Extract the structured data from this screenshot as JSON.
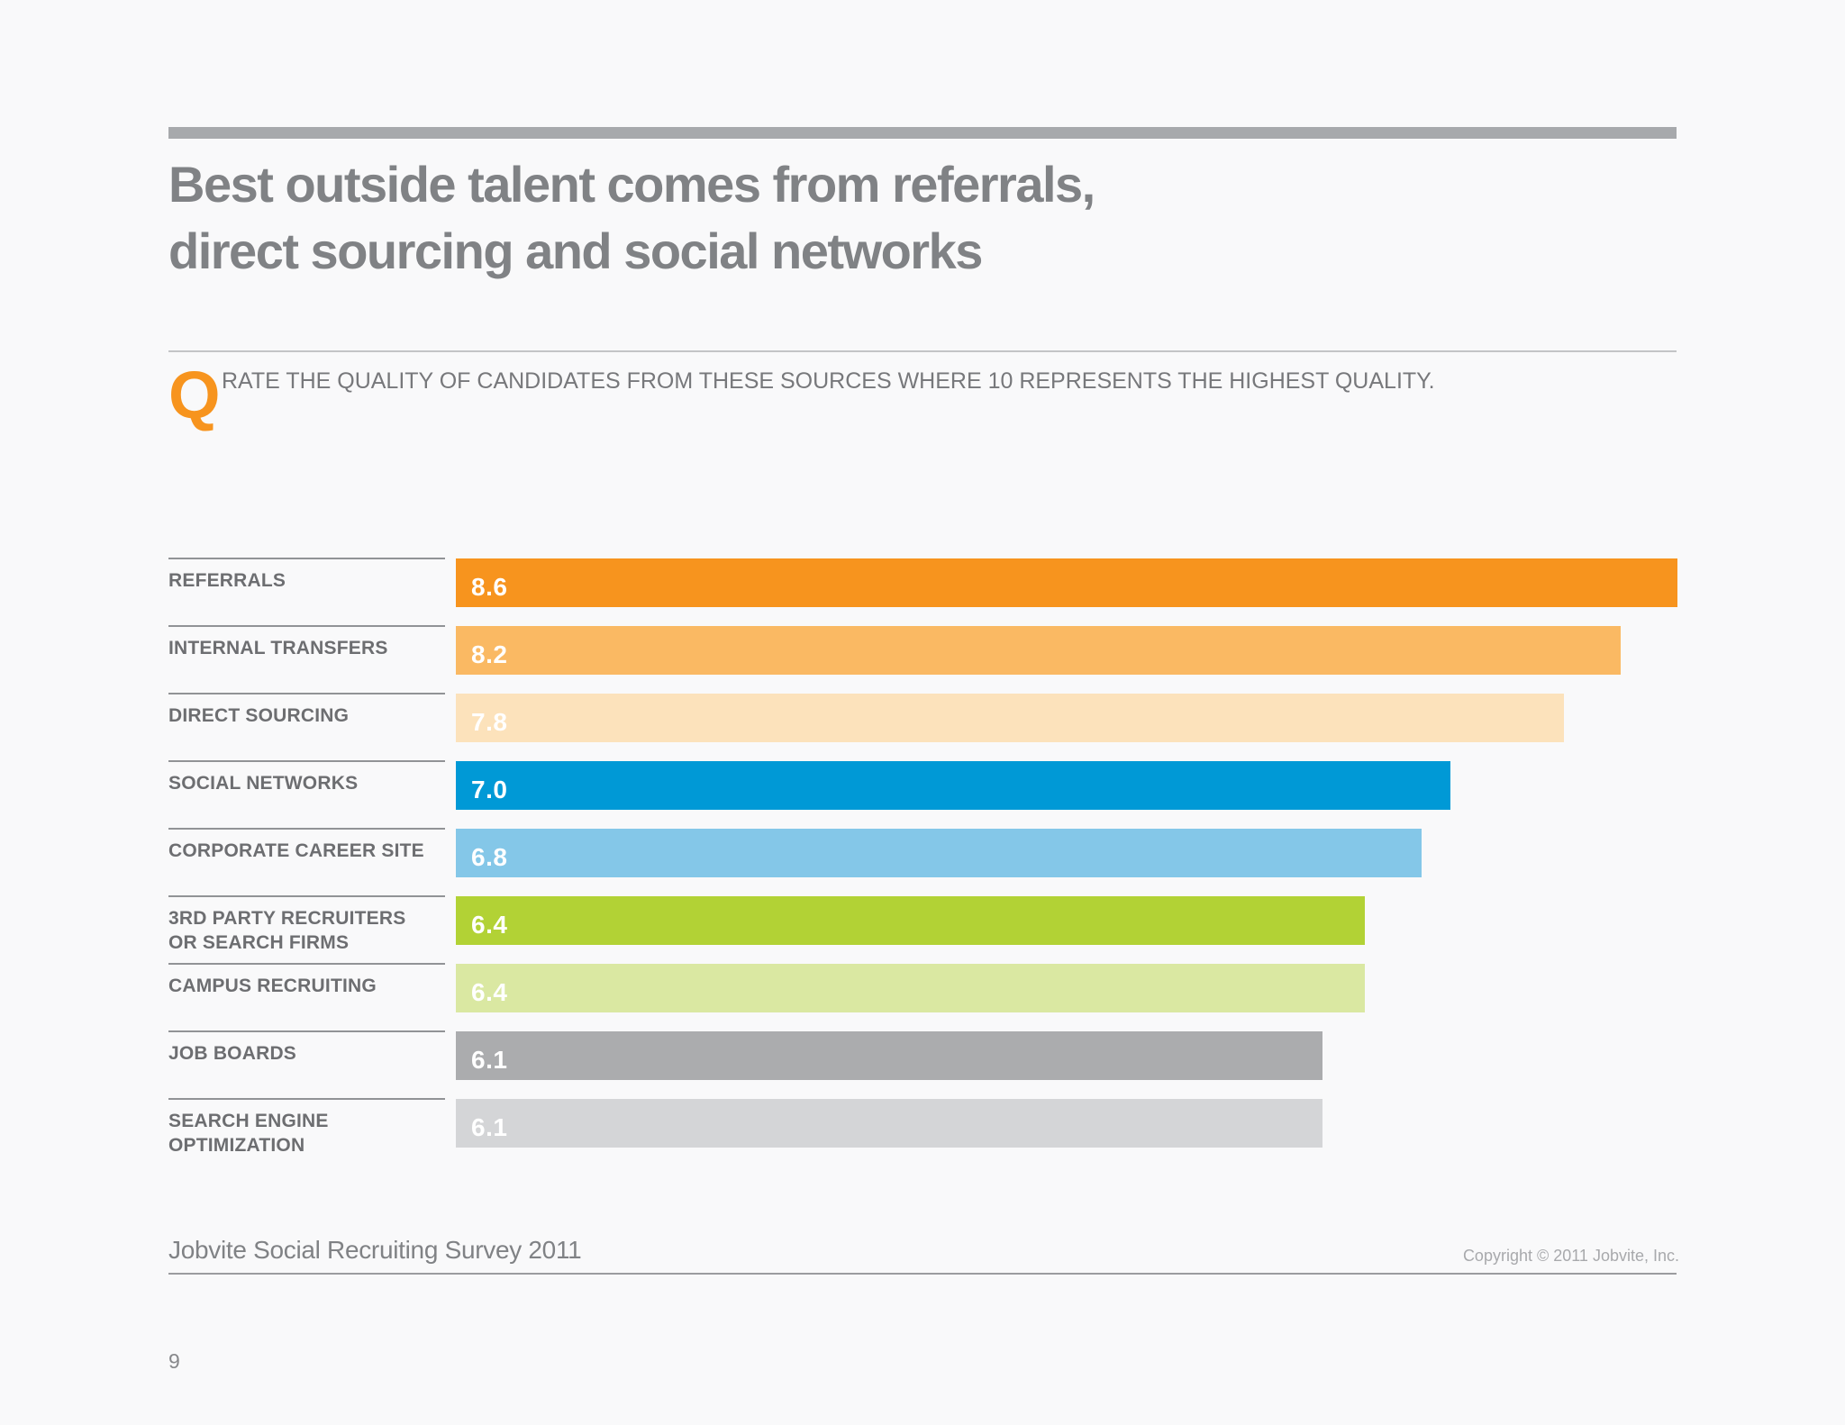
{
  "page": {
    "background_color": "#f9f9fa",
    "page_number": "9"
  },
  "header": {
    "accent_bar_color": "#a7a9ac",
    "title_line1": "Best outside talent comes from referrals,",
    "title_line2": "direct sourcing and social networks",
    "title_color": "#808285"
  },
  "question": {
    "marker": "Q",
    "marker_color": "#f7941e",
    "text": "RATE THE QUALITY OF CANDIDATES FROM THESE SOURCES WHERE 10 REPRESENTS THE HIGHEST QUALITY."
  },
  "chart_data": {
    "type": "bar",
    "orientation": "horizontal",
    "title": "",
    "xlabel": "",
    "ylabel": "",
    "xlim": [
      0,
      8.6
    ],
    "grid": false,
    "legend": false,
    "axis_visible": false,
    "note": "bar length proportional to value; max value 8.6 spans full chart width; value labels printed in white inside left end of each bar",
    "categories": [
      "REFERRALS",
      "INTERNAL TRANSFERS",
      "DIRECT SOURCING",
      "SOCIAL NETWORKS",
      "CORPORATE CAREER SITE",
      "3RD PARTY RECRUITERS\nOR SEARCH FIRMS",
      "CAMPUS RECRUITING",
      "JOB BOARDS",
      "SEARCH ENGINE\nOPTIMIZATION"
    ],
    "values": [
      8.6,
      8.2,
      7.8,
      7.0,
      6.8,
      6.4,
      6.4,
      6.1,
      6.1
    ],
    "value_labels": [
      "8.6",
      "8.2",
      "7.8",
      "7.0",
      "6.8",
      "6.4",
      "6.4",
      "6.1",
      "6.1"
    ],
    "bar_colors": [
      "#f7941e",
      "#fab963",
      "#fce2bb",
      "#0099d6",
      "#84c7e8",
      "#b2d235",
      "#dae8a2",
      "#abacae",
      "#d4d5d7"
    ],
    "value_label_color": "#ffffff",
    "separator_color": "#919396",
    "label_color": "#6d6e71"
  },
  "footer": {
    "source": "Jobvite Social Recruiting Survey 2011",
    "copyright": "Copyright © 2011 Jobvite, Inc."
  }
}
